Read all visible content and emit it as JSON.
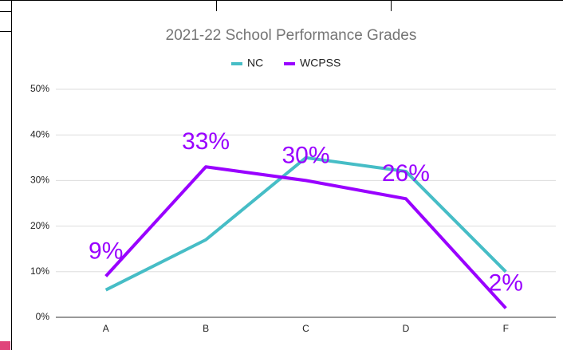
{
  "chart_data": {
    "type": "line",
    "title": "2021-22 School Performance Grades",
    "categories": [
      "A",
      "B",
      "C",
      "D",
      "F"
    ],
    "series": [
      {
        "name": "NC",
        "color": "#46bdc6",
        "values": [
          6,
          17,
          35,
          32,
          10
        ]
      },
      {
        "name": "WCPSS",
        "color": "#9900ff",
        "values": [
          9,
          33,
          30,
          26,
          2
        ],
        "value_labels": [
          "9%",
          "33%",
          "30%",
          "26%",
          "2%"
        ]
      }
    ],
    "ylim": [
      0,
      50
    ],
    "yticks": [
      {
        "value": 0,
        "label": "0%"
      },
      {
        "value": 10,
        "label": "10%"
      },
      {
        "value": 20,
        "label": "20%"
      },
      {
        "value": 30,
        "label": "30%"
      },
      {
        "value": 40,
        "label": "40%"
      },
      {
        "value": 50,
        "label": "50%"
      }
    ],
    "grid": true,
    "legend": "top"
  }
}
